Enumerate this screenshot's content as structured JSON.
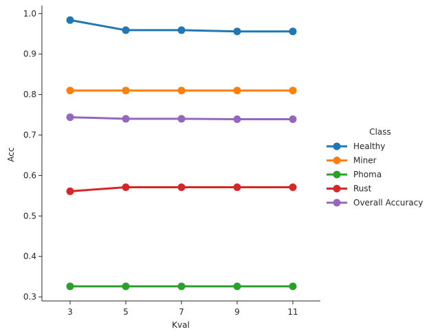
{
  "chart_data": {
    "type": "line",
    "xlabel": "Kval",
    "ylabel": "Acc",
    "categories": [
      "3",
      "5",
      "7",
      "9",
      "11"
    ],
    "ylim": [
      0.29,
      1.02
    ],
    "yticks": [
      "0.3",
      "0.4",
      "0.5",
      "0.6",
      "0.7",
      "0.8",
      "0.9",
      "1.0"
    ],
    "grid": false,
    "legend": {
      "title": "Class",
      "placement": "right"
    },
    "series": [
      {
        "name": "Healthy",
        "color": "#1f77b4",
        "values": [
          0.984,
          0.959,
          0.959,
          0.956,
          0.956
        ]
      },
      {
        "name": "Miner",
        "color": "#ff7f0e",
        "values": [
          0.81,
          0.81,
          0.81,
          0.81,
          0.81
        ]
      },
      {
        "name": "Phoma",
        "color": "#2ca02c",
        "values": [
          0.326,
          0.326,
          0.326,
          0.326,
          0.326
        ]
      },
      {
        "name": "Rust",
        "color": "#d62728",
        "values": [
          0.561,
          0.571,
          0.571,
          0.571,
          0.571
        ]
      },
      {
        "name": "Overall Accuracy",
        "color": "#9467bd",
        "values": [
          0.744,
          0.74,
          0.74,
          0.739,
          0.739
        ]
      }
    ]
  }
}
